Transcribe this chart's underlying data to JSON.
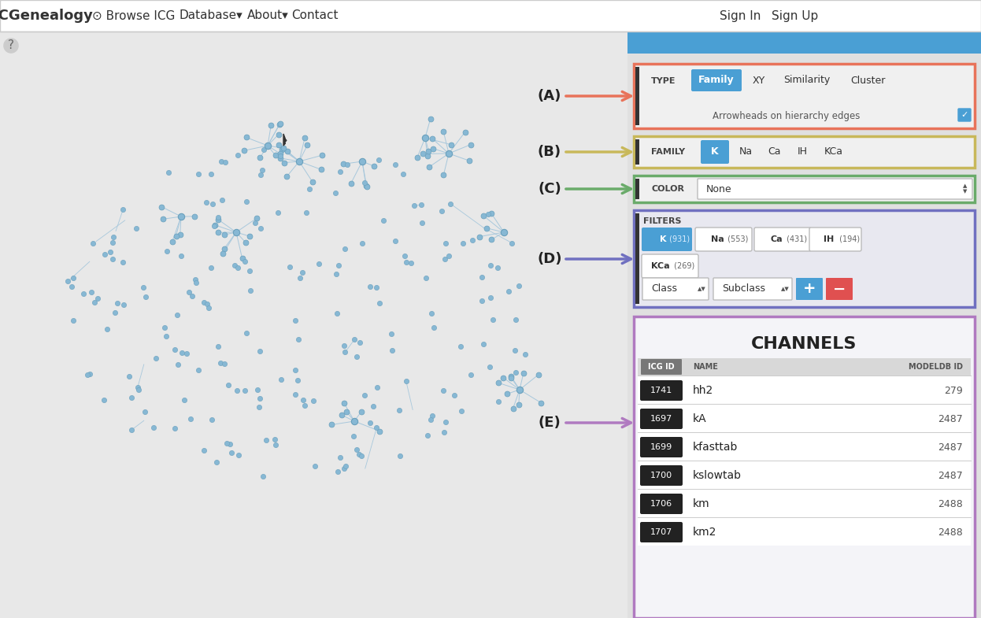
{
  "bg_color": "#e8e8e8",
  "navbar_color": "#ffffff",
  "top_bar_color": "#4a9fd4",
  "panel_A_color": "#e8735a",
  "panel_B_color": "#c8b85a",
  "panel_C_color": "#6aab6a",
  "panel_D_color": "#7070c0",
  "panel_E_color": "#b07ac0",
  "active_btn_color": "#4a9fd4",
  "red_btn_color": "#e05050",
  "arrow_A_color": "#e8735a",
  "arrow_B_color": "#c8b85a",
  "arrow_C_color": "#6aab6a",
  "arrow_D_color": "#7070c0",
  "arrow_E_color": "#b07ac0",
  "channels_rows": [
    {
      "id": "1741",
      "name": "hh2",
      "modeldb": "279"
    },
    {
      "id": "1697",
      "name": "kA",
      "modeldb": "2487"
    },
    {
      "id": "1699",
      "name": "kfasttab",
      "modeldb": "2487"
    },
    {
      "id": "1700",
      "name": "kslowtab",
      "modeldb": "2487"
    },
    {
      "id": "1706",
      "name": "km",
      "modeldb": "2488"
    },
    {
      "id": "1707",
      "name": "km2",
      "modeldb": "2488"
    }
  ]
}
